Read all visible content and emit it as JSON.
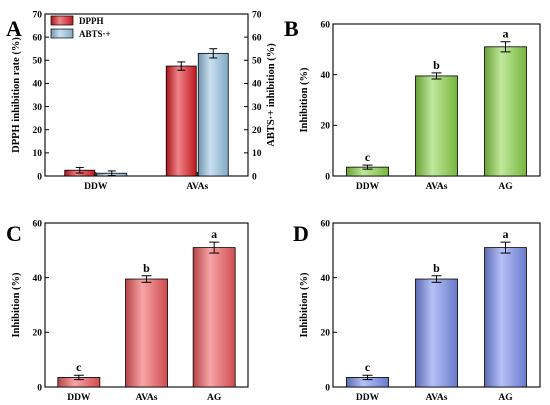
{
  "chart_data": [
    {
      "panel": "A",
      "type": "bar",
      "categories": [
        "DDW",
        "AVAs"
      ],
      "series": [
        {
          "name": "DPPH",
          "values": [
            2.5,
            47.5
          ],
          "errors": [
            1.2,
            1.8
          ],
          "color": "#e21d24"
        },
        {
          "name": "ABTS·+",
          "values": [
            1.2,
            53.0
          ],
          "errors": [
            1.0,
            2.0
          ],
          "color": "#9ac7e6"
        }
      ],
      "ylabel_left": "DPPH inhibition rate (%)",
      "ylabel_right": "ABTS·+ inhibition (%)",
      "ylim": [
        0,
        70
      ],
      "yticks": [
        0,
        10,
        20,
        30,
        40,
        50,
        60,
        70
      ],
      "grid": false,
      "legend": "top-left"
    },
    {
      "panel": "B",
      "type": "bar",
      "categories": [
        "DDW",
        "AVAs",
        "AG"
      ],
      "values": [
        3.5,
        39.5,
        51.0
      ],
      "errors": [
        0.8,
        1.2,
        2.0
      ],
      "labels": [
        "c",
        "b",
        "a"
      ],
      "ylabel": "Inhibition (%)",
      "ylim": [
        0,
        60
      ],
      "yticks": [
        0,
        20,
        40,
        60
      ],
      "color": "#8cd64a",
      "grid": false
    },
    {
      "panel": "C",
      "type": "bar",
      "categories": [
        "DDW",
        "AVAs",
        "AG"
      ],
      "values": [
        3.5,
        39.5,
        51.0
      ],
      "errors": [
        0.8,
        1.2,
        2.0
      ],
      "labels": [
        "c",
        "b",
        "a"
      ],
      "ylabel": "Inhibition (%)",
      "ylim": [
        0,
        60
      ],
      "yticks": [
        0,
        20,
        40,
        60
      ],
      "color": "#f25a5d",
      "grid": false
    },
    {
      "panel": "D",
      "type": "bar",
      "categories": [
        "DDW",
        "AVAs",
        "AG"
      ],
      "values": [
        3.5,
        39.5,
        51.0
      ],
      "errors": [
        0.8,
        1.2,
        2.0
      ],
      "labels": [
        "c",
        "b",
        "a"
      ],
      "ylabel": "Inhibition (%)",
      "ylim": [
        0,
        60
      ],
      "yticks": [
        0,
        20,
        40,
        60
      ],
      "color": "#7b8ff0",
      "grid": false
    }
  ]
}
